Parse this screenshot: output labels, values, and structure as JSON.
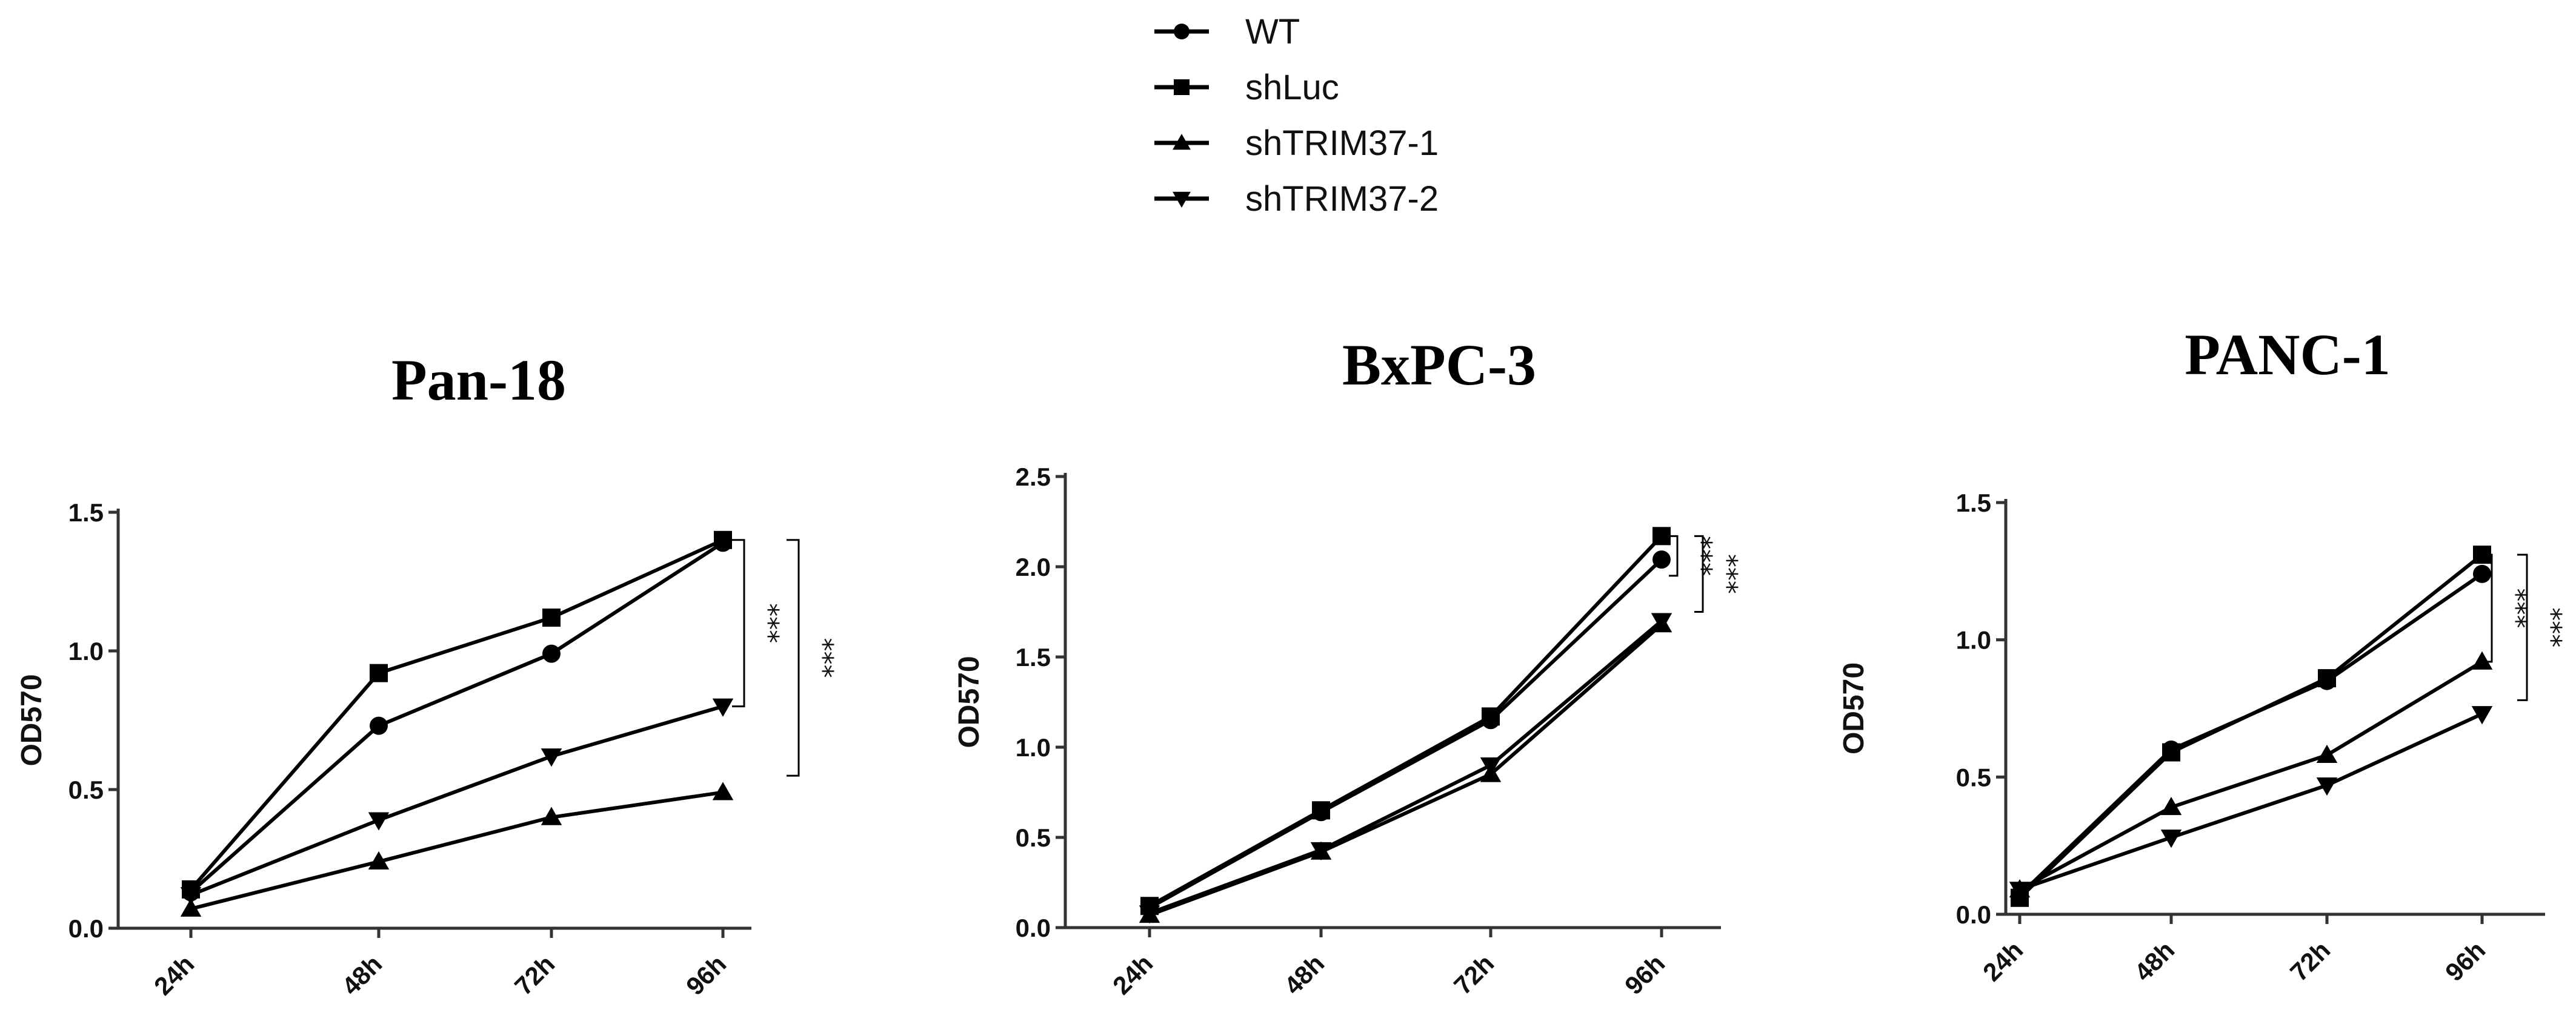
{
  "legend": {
    "position": "top-center",
    "entries": [
      {
        "name": "WT",
        "marker": "circle"
      },
      {
        "name": "shLuc",
        "marker": "square"
      },
      {
        "name": "shTRIM37-1",
        "marker": "triangle-up"
      },
      {
        "name": "shTRIM37-2",
        "marker": "triangle-down"
      }
    ]
  },
  "colors": {
    "lines": "#000000",
    "background": "#ffffff"
  },
  "chart_data": [
    {
      "type": "line",
      "title": "Pan-18",
      "xlabel": "",
      "ylabel": "OD570",
      "categories": [
        "24h",
        "48h",
        "72h",
        "96h"
      ],
      "yticks": [
        "0.0",
        "0.5",
        "1.0",
        "1.5"
      ],
      "ylim": [
        0,
        1.5
      ],
      "grid": false,
      "series": [
        {
          "name": "WT",
          "marker": "circle",
          "values": [
            0.13,
            0.73,
            0.99,
            1.39
          ]
        },
        {
          "name": "shLuc",
          "marker": "square",
          "values": [
            0.14,
            0.92,
            1.12,
            1.4
          ]
        },
        {
          "name": "shTRIM37-1",
          "marker": "triangle-up",
          "values": [
            0.07,
            0.24,
            0.4,
            0.49
          ]
        },
        {
          "name": "shTRIM37-2",
          "marker": "triangle-down",
          "values": [
            0.12,
            0.39,
            0.62,
            0.8
          ]
        }
      ],
      "significance": [
        {
          "label": "***",
          "from_value": 0.8,
          "to_value": 1.4
        },
        {
          "label": "***",
          "from_value": 0.55,
          "to_value": 1.4
        }
      ]
    },
    {
      "type": "line",
      "title": "BxPC-3",
      "xlabel": "",
      "ylabel": "OD570",
      "categories": [
        "24h",
        "48h",
        "72h",
        "96h"
      ],
      "yticks": [
        "0.0",
        "0.5",
        "1.0",
        "1.5",
        "2.0",
        "2.5"
      ],
      "ylim": [
        0,
        2.5
      ],
      "grid": false,
      "series": [
        {
          "name": "WT",
          "marker": "circle",
          "values": [
            0.11,
            0.64,
            1.15,
            2.04
          ]
        },
        {
          "name": "shLuc",
          "marker": "square",
          "values": [
            0.12,
            0.65,
            1.17,
            2.17
          ]
        },
        {
          "name": "shTRIM37-1",
          "marker": "triangle-up",
          "values": [
            0.07,
            0.42,
            0.85,
            1.68
          ]
        },
        {
          "name": "shTRIM37-2",
          "marker": "triangle-down",
          "values": [
            0.08,
            0.43,
            0.9,
            1.7
          ]
        }
      ],
      "significance": [
        {
          "label": "***",
          "from_value": 1.95,
          "to_value": 2.17
        },
        {
          "label": "***",
          "from_value": 1.75,
          "to_value": 2.17
        }
      ]
    },
    {
      "type": "line",
      "title": "PANC-1",
      "xlabel": "",
      "ylabel": "OD570",
      "categories": [
        "24h",
        "48h",
        "72h",
        "96h"
      ],
      "yticks": [
        "0.0",
        "0.5",
        "1.0",
        "1.5"
      ],
      "ylim": [
        0,
        1.5
      ],
      "grid": false,
      "series": [
        {
          "name": "WT",
          "marker": "circle",
          "values": [
            0.07,
            0.6,
            0.85,
            1.24
          ]
        },
        {
          "name": "shLuc",
          "marker": "square",
          "values": [
            0.06,
            0.59,
            0.86,
            1.31
          ]
        },
        {
          "name": "shTRIM37-1",
          "marker": "triangle-up",
          "values": [
            0.09,
            0.39,
            0.58,
            0.92
          ]
        },
        {
          "name": "shTRIM37-2",
          "marker": "triangle-down",
          "values": [
            0.09,
            0.28,
            0.47,
            0.73
          ]
        }
      ],
      "significance": [
        {
          "label": "***",
          "from_value": 0.92,
          "to_value": 1.31
        },
        {
          "label": "***",
          "from_value": 0.78,
          "to_value": 1.31
        }
      ]
    }
  ]
}
